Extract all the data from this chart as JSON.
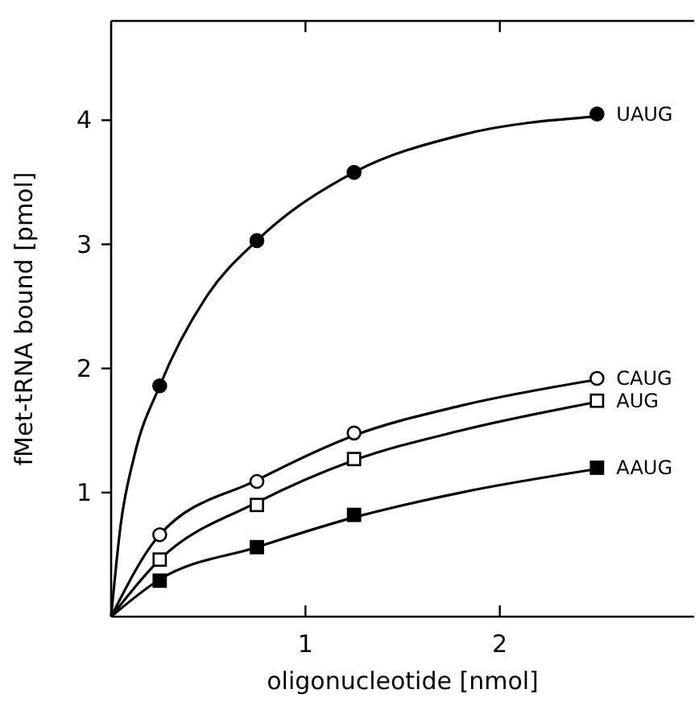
{
  "chart_data": {
    "type": "scatter",
    "xlabel": "oligonucleotide [nmol]",
    "ylabel": "fMet-tRNA bound [pmol]",
    "xlim": [
      0,
      3
    ],
    "ylim": [
      0,
      4.8
    ],
    "xticks": [
      1,
      2
    ],
    "yticks": [
      1,
      2,
      3,
      4
    ],
    "grid": false,
    "series": [
      {
        "name": "UAUG",
        "color": "#000000",
        "marker": "circle",
        "x": [
          0.25,
          0.75,
          1.25,
          2.5
        ],
        "values": [
          1.86,
          3.03,
          3.58,
          4.05
        ]
      },
      {
        "name": "CAUG",
        "color": "#000000",
        "marker": "circle-open",
        "x": [
          0.25,
          0.75,
          1.25,
          2.5
        ],
        "values": [
          0.66,
          1.09,
          1.48,
          1.92
        ]
      },
      {
        "name": "AUG",
        "color": "#000000",
        "marker": "square-open",
        "x": [
          0.25,
          0.75,
          1.25,
          2.5
        ],
        "values": [
          0.46,
          0.9,
          1.27,
          1.74
        ]
      },
      {
        "name": "AAUG",
        "color": "#000000",
        "marker": "square",
        "x": [
          0.25,
          0.75,
          1.25,
          2.5
        ],
        "values": [
          0.29,
          0.56,
          0.82,
          1.2
        ]
      },
      {
        "type": "line",
        "color": "#000000",
        "line_style": "solid",
        "marker": "none",
        "x": [
          0,
          0.05,
          0.12,
          0.25,
          0.5,
          0.75,
          1.25,
          1.8,
          2.5
        ],
        "values": [
          0,
          0.75,
          1.3,
          1.86,
          2.6,
          3.03,
          3.58,
          3.88,
          4.03
        ]
      },
      {
        "type": "line",
        "color": "#000000",
        "line_style": "solid",
        "marker": "none",
        "x": [
          0,
          0.25,
          0.75,
          1.25,
          1.8,
          2.5
        ],
        "values": [
          0,
          0.66,
          1.1,
          1.46,
          1.7,
          1.91
        ]
      },
      {
        "type": "line",
        "color": "#000000",
        "line_style": "solid",
        "marker": "none",
        "x": [
          0,
          0.25,
          0.75,
          1.25,
          1.8,
          2.5
        ],
        "values": [
          0,
          0.46,
          0.92,
          1.26,
          1.5,
          1.73
        ]
      },
      {
        "type": "line",
        "color": "#000000",
        "line_style": "solid",
        "marker": "none",
        "x": [
          0,
          0.25,
          0.75,
          1.25,
          1.8,
          2.5
        ],
        "values": [
          0,
          0.3,
          0.56,
          0.8,
          1.0,
          1.19
        ]
      }
    ]
  }
}
